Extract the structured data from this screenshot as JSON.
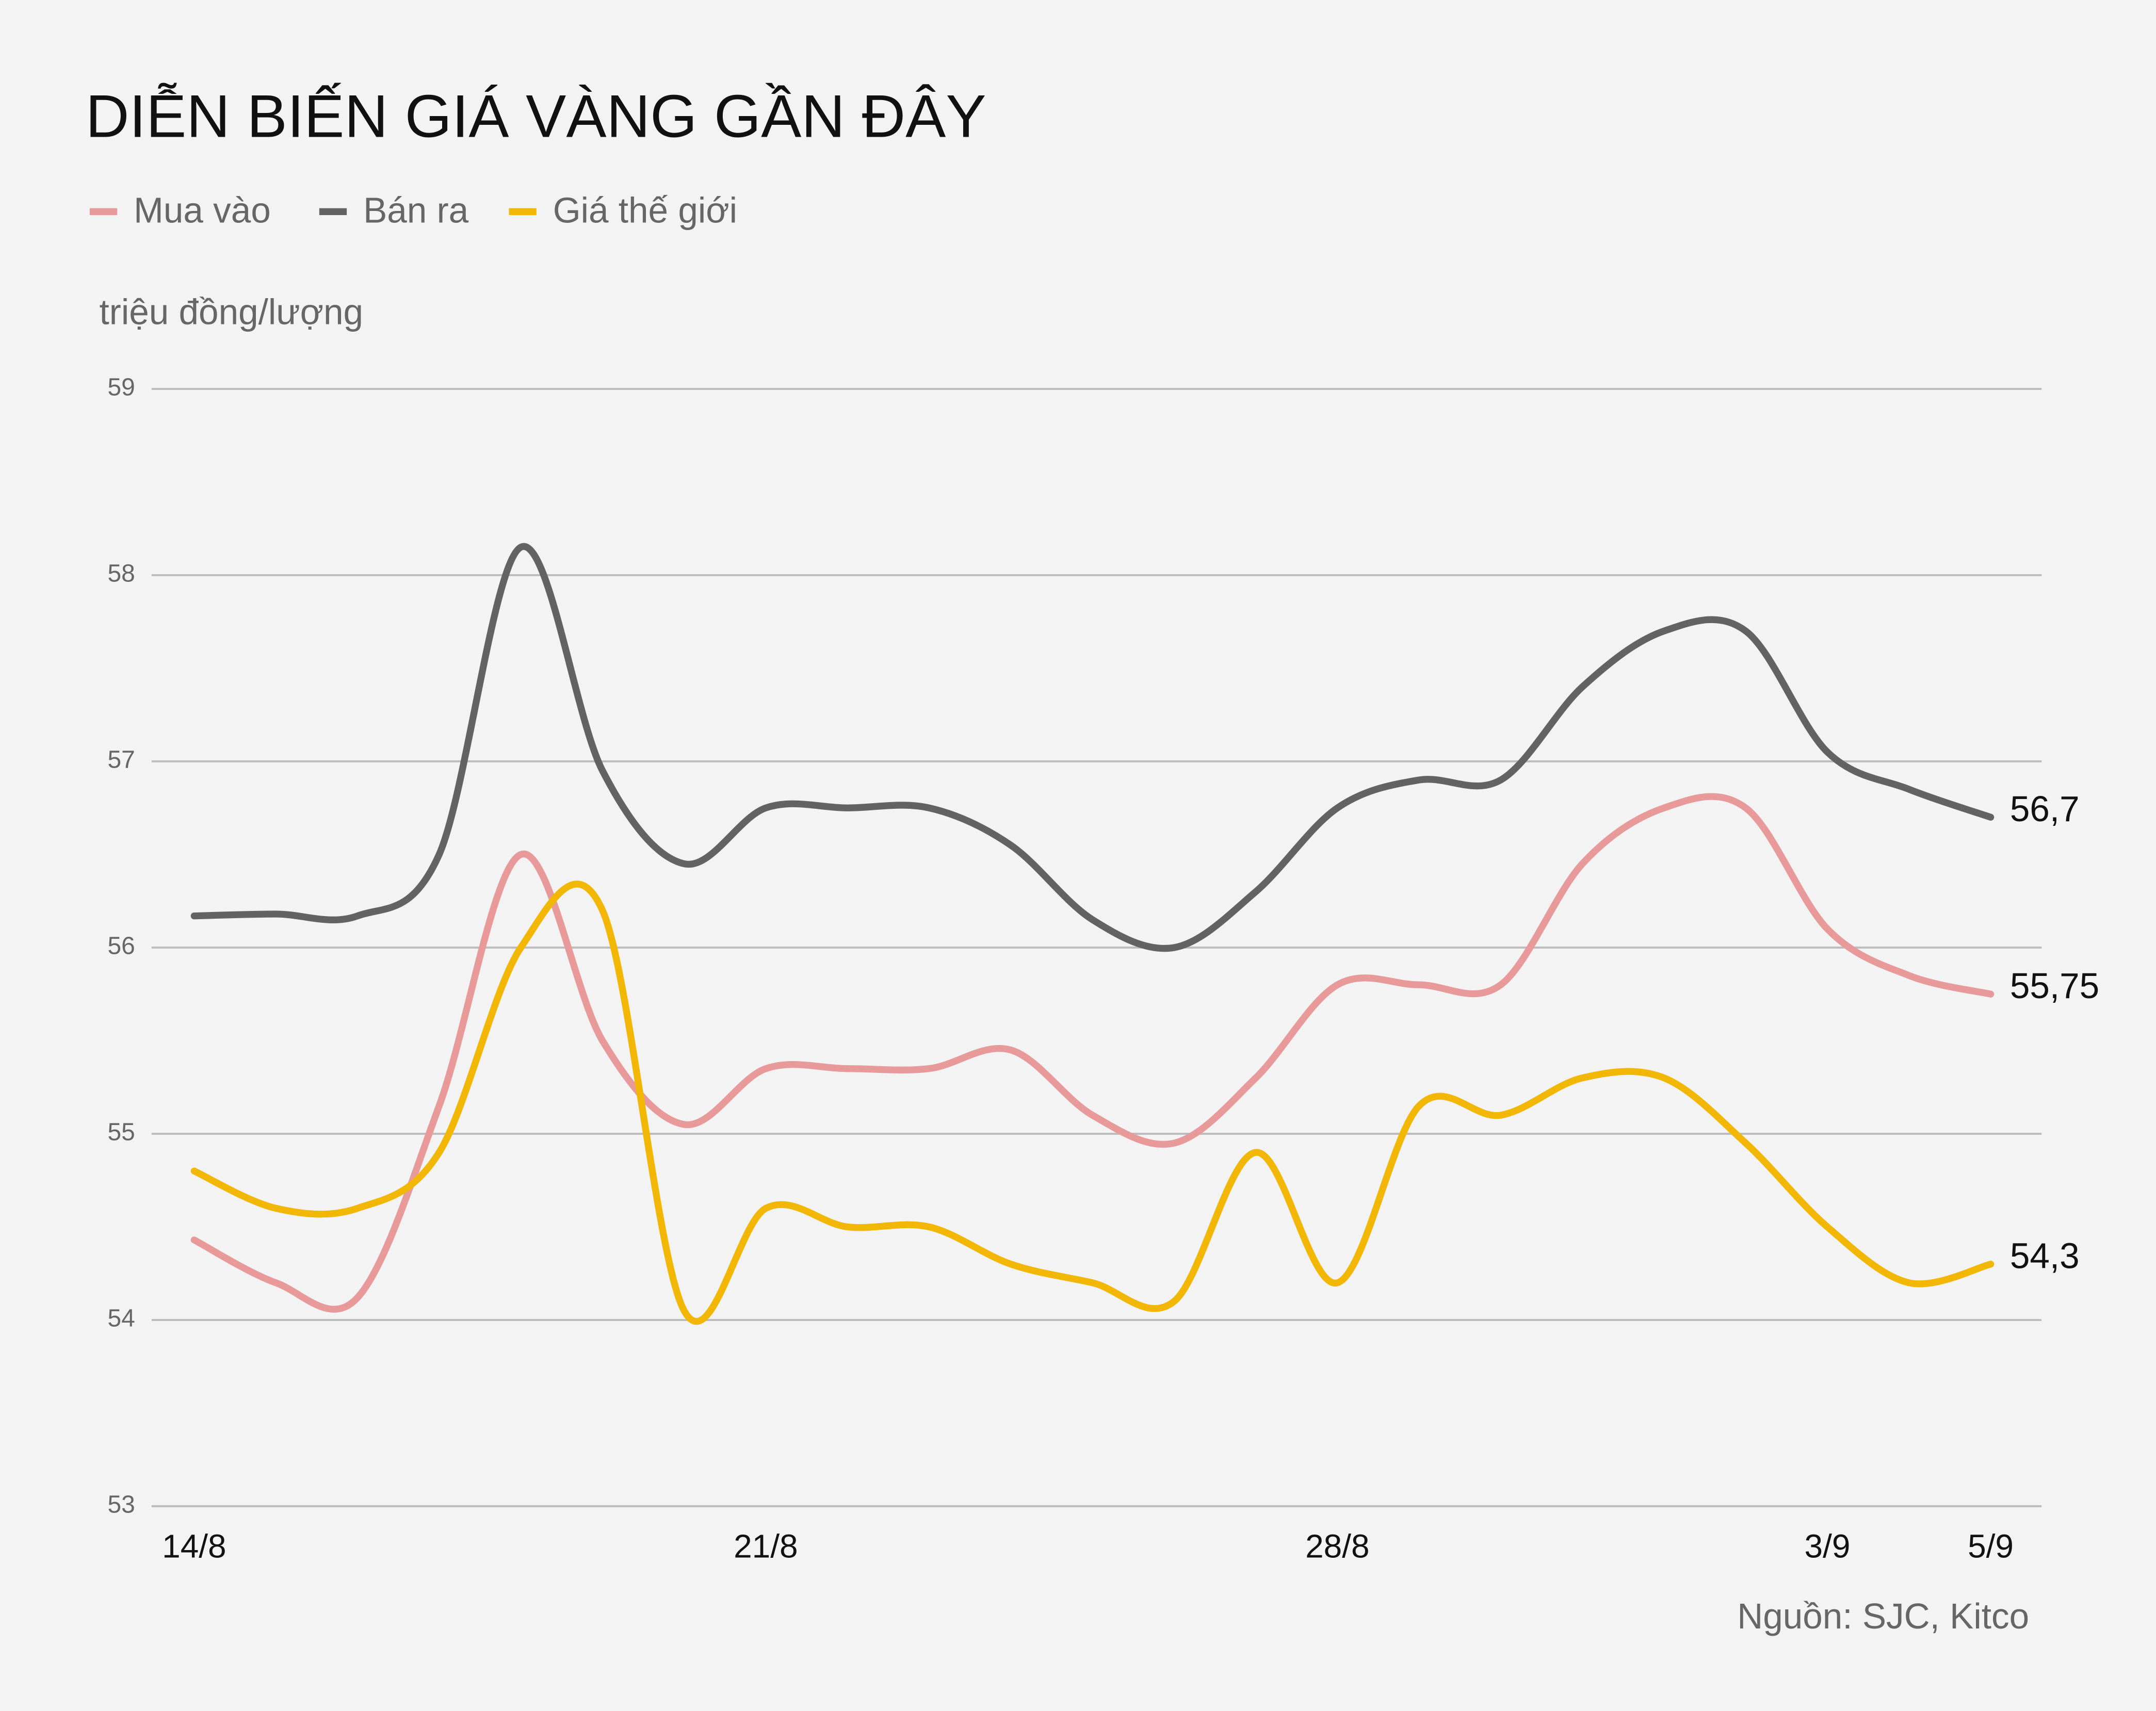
{
  "chart_data": {
    "type": "line",
    "title": "DIỄN BIẾN GIÁ VÀNG GẦN ĐÂY",
    "y_label": "triệu đồng/lượng",
    "source": "Nguồn: SJC, Kitco",
    "categories": [
      "14/8",
      null,
      null,
      null,
      null,
      null,
      null,
      "21/8",
      null,
      null,
      null,
      null,
      null,
      null,
      "28/8",
      null,
      null,
      null,
      null,
      null,
      "3/9",
      null,
      "5/9"
    ],
    "ylim": [
      53,
      59
    ],
    "yticks": [
      53,
      54,
      55,
      56,
      57,
      58,
      59
    ],
    "grid": true,
    "series": [
      {
        "name": "Mua vào",
        "color": "#e89a9a",
        "values": [
          54.43,
          54.2,
          54.12,
          55.15,
          56.5,
          55.5,
          55.05,
          55.35,
          55.35,
          55.35,
          55.45,
          55.1,
          54.95,
          55.3,
          55.8,
          55.8,
          55.8,
          56.45,
          56.75,
          56.75,
          56.1,
          55.85,
          55.75
        ],
        "value_labels": [
          null,
          null,
          null,
          null,
          null,
          null,
          null,
          null,
          null,
          null,
          null,
          null,
          null,
          null,
          null,
          null,
          null,
          null,
          null,
          null,
          null,
          null,
          "55,75"
        ]
      },
      {
        "name": "Bán ra",
        "color": "#636363",
        "values": [
          56.17,
          56.18,
          56.17,
          56.5,
          58.15,
          56.95,
          56.45,
          56.75,
          56.75,
          56.75,
          56.55,
          56.15,
          56.0,
          56.3,
          56.75,
          56.9,
          56.9,
          57.4,
          57.7,
          57.7,
          57.05,
          56.85,
          56.7
        ],
        "value_labels": [
          null,
          null,
          null,
          null,
          null,
          null,
          null,
          null,
          null,
          null,
          null,
          null,
          null,
          null,
          null,
          null,
          null,
          null,
          null,
          null,
          null,
          null,
          "56,7"
        ]
      },
      {
        "name": "Giá thế giới",
        "color": "#f2b705",
        "values": [
          54.8,
          54.6,
          54.6,
          54.9,
          56.0,
          56.2,
          54.05,
          54.6,
          54.5,
          54.5,
          54.3,
          54.2,
          54.1,
          54.9,
          54.2,
          55.15,
          55.1,
          55.3,
          55.3,
          54.95,
          54.5,
          54.2,
          54.3
        ],
        "value_labels": [
          null,
          null,
          null,
          null,
          null,
          null,
          null,
          null,
          null,
          null,
          null,
          null,
          null,
          null,
          null,
          null,
          null,
          null,
          null,
          null,
          null,
          null,
          "54,3"
        ]
      }
    ]
  }
}
